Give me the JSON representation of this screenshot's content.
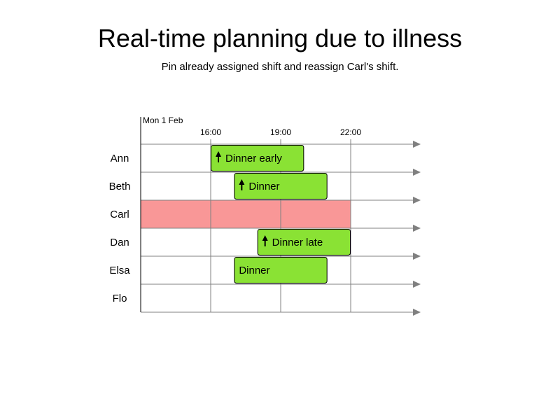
{
  "title": "Real-time planning due to illness",
  "subtitle": "Pin already assigned shift and reassign Carl's shift.",
  "date_label": "Mon 1 Feb",
  "time_ticks": [
    {
      "label": "16:00",
      "hour": 16
    },
    {
      "label": "19:00",
      "hour": 19
    },
    {
      "label": "22:00",
      "hour": 22
    }
  ],
  "time_range": {
    "start_hour": 13,
    "end_hour": 25
  },
  "employees": [
    "Ann",
    "Beth",
    "Carl",
    "Dan",
    "Elsa",
    "Flo"
  ],
  "unavailable": [
    {
      "employee": "Carl",
      "start_hour": 13,
      "end_hour": 22,
      "color": "#f99797"
    }
  ],
  "shifts": [
    {
      "employee": "Ann",
      "label": "Dinner early",
      "start_hour": 16,
      "end_hour": 20,
      "pinned": true,
      "icon": "pin-icon"
    },
    {
      "employee": "Beth",
      "label": "Dinner",
      "start_hour": 17,
      "end_hour": 21,
      "pinned": true,
      "icon": "pin-icon"
    },
    {
      "employee": "Dan",
      "label": "Dinner late",
      "start_hour": 18,
      "end_hour": 22,
      "pinned": true,
      "icon": "pin-icon"
    },
    {
      "employee": "Elsa",
      "label": "Dinner",
      "start_hour": 17,
      "end_hour": 21,
      "pinned": false
    }
  ],
  "colors": {
    "shift_fill": "#8ae234",
    "grid_line": "#808080",
    "axis": "#000000"
  }
}
